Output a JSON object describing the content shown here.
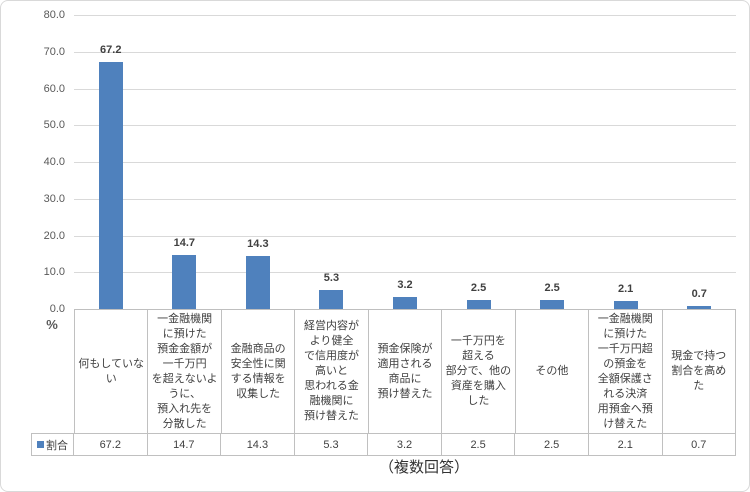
{
  "chart_data": {
    "type": "bar",
    "title": "",
    "ylabel": "%",
    "ylim": [
      0,
      80
    ],
    "ytick_step": 10,
    "yticks": [
      "80.0",
      "70.0",
      "60.0",
      "50.0",
      "40.0",
      "30.0",
      "20.0",
      "10.0",
      "0.0"
    ],
    "grid": true,
    "legend_position": "bottom-table",
    "note": "（複数回答）",
    "categories": [
      "何もしていな\nい",
      "一金融機関\nに預けた\n預金金額が\n一千万円\nを超えないよ\nうに、\n預入れ先を\n分散した",
      "金融商品の\n安全性に関\nする情報を\n収集した",
      "経営内容が\nより健全\nで信用度が\n高いと\n思われる金\n融機関に\n預け替えた",
      "預金保険が\n適用される\n商品に\n預け替えた",
      "一千万円を\n超える\n部分で、他の\n資産を購入\nした",
      "その他",
      "一金融機関\nに預けた\n一千万円超\nの預金を\n全額保護さ\nれる決済\n用預金へ預\nけ替えた",
      "現金で持つ\n割合を高め\nた"
    ],
    "series": [
      {
        "name": "割合",
        "values": [
          67.2,
          14.7,
          14.3,
          5.3,
          3.2,
          2.5,
          2.5,
          2.1,
          0.7
        ]
      }
    ],
    "data_labels": [
      "67.2",
      "14.7",
      "14.3",
      "5.3",
      "3.2",
      "2.5",
      "2.5",
      "2.1",
      "0.7"
    ],
    "table_values": [
      "67.2",
      "14.7",
      "14.3",
      "5.3",
      "3.2",
      "2.5",
      "2.5",
      "2.1",
      "0.7"
    ]
  },
  "colors": {
    "bar": "#4F81BD",
    "gridline": "#D9D9D9",
    "axis_line": "#BFBFBF",
    "table_border": "#C0C0C0",
    "tick_label": "#595959",
    "data_label": "#404040",
    "category_label": "#404040",
    "outer_border": "#D9D9D9"
  }
}
